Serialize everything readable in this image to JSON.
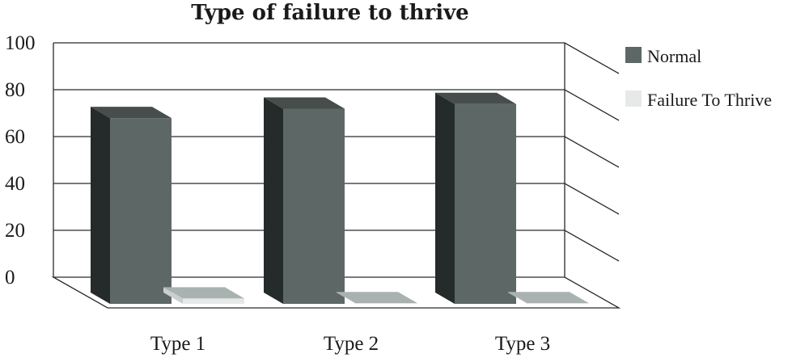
{
  "chart_data": {
    "type": "bar",
    "title": "Type of failure to thrive",
    "categories": [
      "Type 1",
      "Type 2",
      "Type 3"
    ],
    "series": [
      {
        "name": "Normal",
        "values": [
          81,
          85,
          87
        ]
      },
      {
        "name": "Failure To Thrive",
        "values": [
          4,
          2,
          2
        ]
      }
    ],
    "ylim": [
      0,
      100
    ],
    "yticks": [
      0,
      20,
      40,
      60,
      80,
      100
    ],
    "grid": true,
    "legend_position": "right",
    "colors": {
      "Normal": {
        "front": "#5d6866",
        "side": "#252b2a",
        "top": "#464d4b"
      },
      "Failure To Thrive": {
        "front": "#e6e9e8",
        "side": "#c9cfcd",
        "top": "#a9b2b0"
      }
    }
  }
}
